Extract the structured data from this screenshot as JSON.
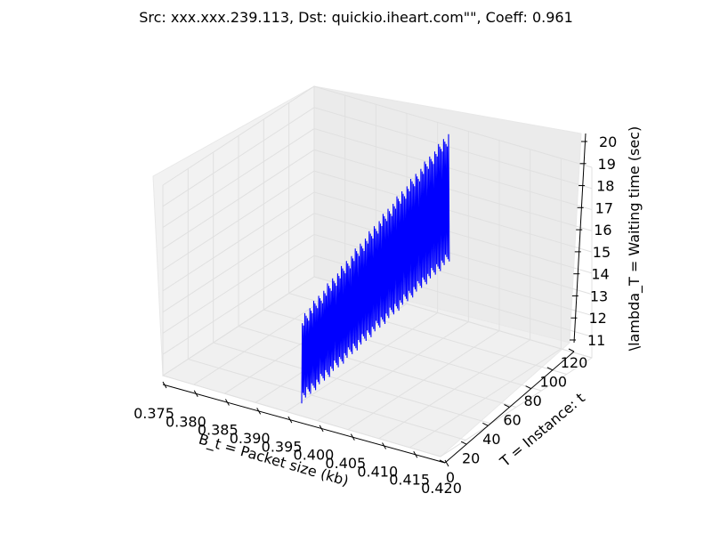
{
  "chart_data": {
    "type": "line",
    "projection": "3d",
    "title": "Src: xxx.xxx.239.113, Dst: quickio.iheart.com\"\", Coeff: 0.961",
    "xlabel": "B_t = Packet size (kb)",
    "ylabel": "T = Instance: t",
    "zlabel": "\\lambda_T = Waiting time (sec)",
    "xlim": [
      0.375,
      0.42
    ],
    "ylim": [
      0,
      120
    ],
    "zlim": [
      11,
      20
    ],
    "x_ticks": [
      "0.375",
      "0.380",
      "0.385",
      "0.390",
      "0.395",
      "0.400",
      "0.405",
      "0.410",
      "0.415",
      "0.420"
    ],
    "y_ticks": [
      "0",
      "20",
      "40",
      "60",
      "80",
      "100",
      "120"
    ],
    "z_ticks": [
      "11",
      "12",
      "13",
      "14",
      "15",
      "16",
      "17",
      "18",
      "19",
      "20"
    ],
    "grid": true,
    "series_color": "#0000ff",
    "series": [
      {
        "x": 0.3975,
        "t_range": [
          0,
          117
        ],
        "t_step": 0.5,
        "wait_low_start": 11.6,
        "wait_low_end": 13.7,
        "wait_high_start": 15.1,
        "wait_high_end": 19.3
      }
    ]
  }
}
